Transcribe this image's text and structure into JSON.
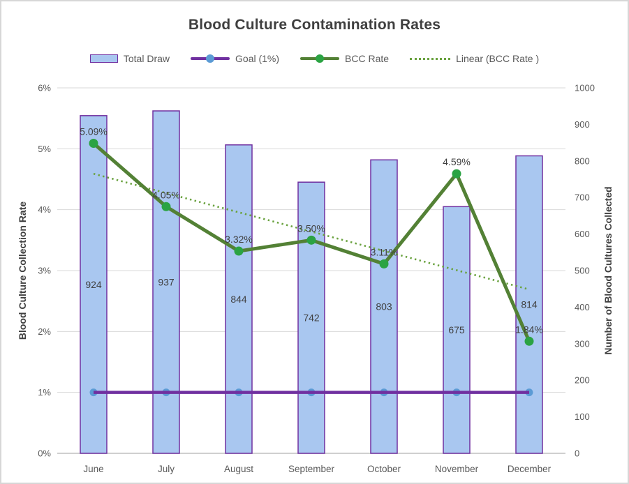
{
  "chart_data": {
    "type": "combo-bar-line",
    "title": "Blood Culture Contamination Rates",
    "legend_position": "top",
    "grid": true,
    "categories": [
      "June",
      "July",
      "August",
      "September",
      "October",
      "November",
      "December"
    ],
    "series": [
      {
        "name": "Total Draw",
        "type": "bar",
        "axis": "right",
        "values": [
          924,
          937,
          844,
          742,
          803,
          675,
          814
        ],
        "labels": [
          "924",
          "937",
          "844",
          "742",
          "803",
          "675",
          "814"
        ],
        "fill": "#A9C7F0",
        "stroke": "#7030A0"
      },
      {
        "name": "Goal (1%)",
        "type": "line",
        "axis": "left",
        "values": [
          1,
          1,
          1,
          1,
          1,
          1,
          1
        ],
        "color": "#7030A0",
        "marker_color": "#5B9BD5"
      },
      {
        "name": "BCC Rate",
        "type": "line",
        "axis": "left",
        "values": [
          5.09,
          4.05,
          3.32,
          3.5,
          3.11,
          4.59,
          1.84
        ],
        "labels": [
          "5.09%",
          "4.05%",
          "3.32%",
          "3.50%",
          "3.11%",
          "4.59%",
          "1.84%"
        ],
        "color": "#538135",
        "marker_color": "#2BA343"
      },
      {
        "name": "Linear (BCC Rate )",
        "type": "trendline",
        "axis": "left",
        "start": 4.59,
        "end": 2.69,
        "color": "#6AA23F",
        "style": "dotted"
      }
    ],
    "left_axis": {
      "title": "Blood Culture Collection Rate",
      "min": 0,
      "max": 6,
      "tick_labels": [
        "0%",
        "1%",
        "2%",
        "3%",
        "4%",
        "5%",
        "6%"
      ]
    },
    "right_axis": {
      "title": "Number of Blood Cultures Collected",
      "min": 0,
      "max": 1000,
      "tick_labels": [
        "0",
        "100",
        "200",
        "300",
        "400",
        "500",
        "600",
        "700",
        "800",
        "900",
        "1000"
      ]
    },
    "colors": {
      "grid": "#D9D9D9",
      "axis_line": "#BFBFBF",
      "tick_text": "#595959",
      "data_label": "#404040",
      "title_text": "#3F3F3F"
    }
  }
}
